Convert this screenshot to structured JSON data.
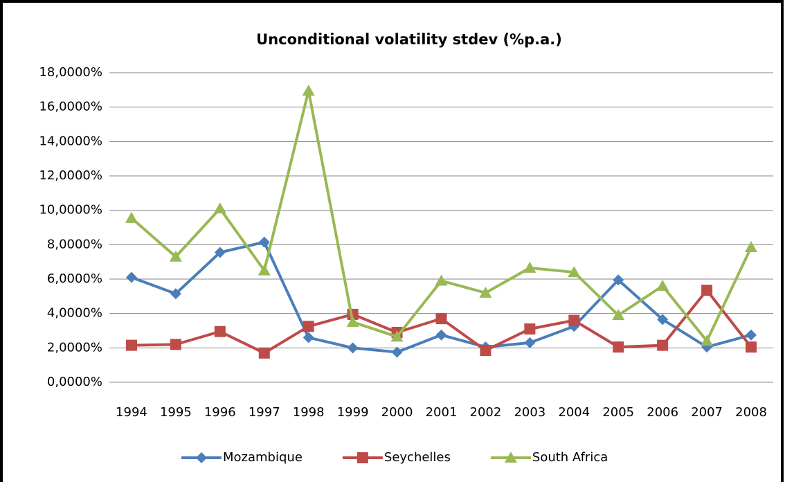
{
  "chart_data": {
    "type": "line",
    "title": "Unconditional volatility stdev (%p.a.)",
    "categories": [
      "1994",
      "1995",
      "1996",
      "1997",
      "1998",
      "1999",
      "2000",
      "2001",
      "2002",
      "2003",
      "2004",
      "2005",
      "2006",
      "2007",
      "2008"
    ],
    "series": [
      {
        "name": "Mozambique",
        "color": "#4a7ebb",
        "marker": "diamond",
        "values": [
          6.1,
          5.15,
          7.55,
          8.15,
          2.6,
          2.0,
          1.75,
          2.75,
          2.05,
          2.3,
          3.25,
          5.95,
          3.65,
          2.05,
          2.75
        ]
      },
      {
        "name": "Seychelles",
        "color": "#be4b48",
        "marker": "square",
        "values": [
          2.15,
          2.2,
          2.95,
          1.7,
          3.25,
          3.95,
          2.9,
          3.7,
          1.85,
          3.1,
          3.6,
          2.05,
          2.15,
          5.35,
          2.05
        ]
      },
      {
        "name": "South Africa",
        "color": "#98b954",
        "marker": "triangle",
        "values": [
          9.55,
          7.3,
          10.1,
          6.5,
          16.95,
          3.5,
          2.65,
          5.9,
          5.2,
          6.65,
          6.4,
          3.9,
          5.6,
          2.4,
          7.85
        ]
      }
    ],
    "ylim": [
      0,
      18
    ],
    "yticks": [
      {
        "value": 0,
        "label": "0,0000%"
      },
      {
        "value": 2,
        "label": "2,0000%"
      },
      {
        "value": 4,
        "label": "4,0000%"
      },
      {
        "value": 6,
        "label": "6,0000%"
      },
      {
        "value": 8,
        "label": "8,0000%"
      },
      {
        "value": 10,
        "label": "10,0000%"
      },
      {
        "value": 12,
        "label": "12,0000%"
      },
      {
        "value": 14,
        "label": "14,0000%"
      },
      {
        "value": 16,
        "label": "16,0000%"
      },
      {
        "value": 18,
        "label": "18,0000%"
      }
    ],
    "grid": true,
    "legend": "bottom"
  }
}
